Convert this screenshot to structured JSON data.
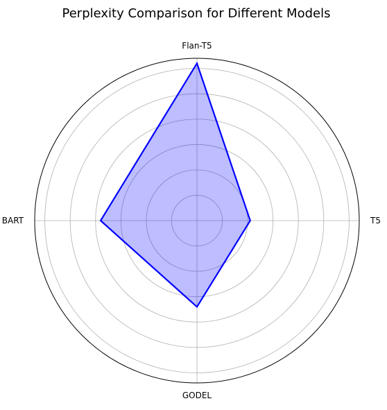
{
  "chart_data": {
    "type": "radar",
    "title": "Perplexity Comparison for Different Models",
    "categories": [
      "Flan-T5",
      "T5",
      "GODEL",
      "BART"
    ],
    "series": [
      {
        "values": [
          6.2,
          2.1,
          3.4,
          3.8
        ]
      }
    ],
    "rlim": [
      0,
      6.4
    ],
    "r_grid": [
      1,
      2,
      3,
      4,
      5,
      6
    ],
    "grid": true,
    "colors": {
      "line": "#0000ff",
      "fill": "#0000ff",
      "fill_opacity": 0.26
    }
  }
}
